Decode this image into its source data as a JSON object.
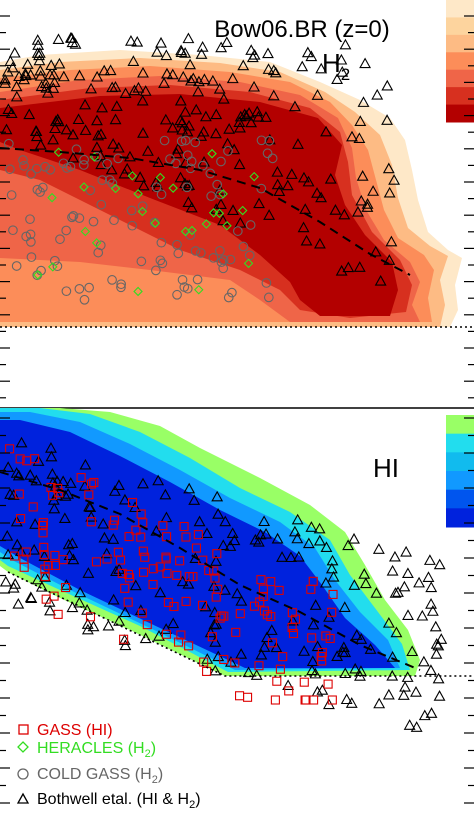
{
  "chart_data": [
    {
      "type": "heatmap",
      "panel": "H2",
      "title": "Bow06.BR (z=0)",
      "label": "H2",
      "label_main": "H",
      "label_sub": "2",
      "colorbar_colors": [
        "#fee8c8",
        "#fdd49e",
        "#fdbb84",
        "#fc8d59",
        "#ef6548",
        "#d7301f",
        "#b30000"
      ],
      "contour_levels": [
        {
          "level": 1,
          "color": "#fee8c8"
        },
        {
          "level": 2,
          "color": "#fdbb84"
        },
        {
          "level": 3,
          "color": "#fc8d59"
        },
        {
          "level": 4,
          "color": "#ef6548"
        },
        {
          "level": 5,
          "color": "#d7301f"
        },
        {
          "level": 6,
          "color": "#b30000"
        }
      ],
      "median_line": "dashed",
      "lower_limit_line": "dotted"
    },
    {
      "type": "heatmap",
      "panel": "HI",
      "label": "HI",
      "colorbar_colors": [
        "#99ff66",
        "#22ddee",
        "#11bbee",
        "#1199ff",
        "#0055ee",
        "#0022dd"
      ],
      "contour_levels": [
        {
          "level": 1,
          "color": "#99ff66"
        },
        {
          "level": 2,
          "color": "#22ddee"
        },
        {
          "level": 3,
          "color": "#1199ff"
        },
        {
          "level": 4,
          "color": "#0022dd"
        }
      ],
      "median_line": "dashed",
      "lower_limit_line": "dotted"
    }
  ],
  "legend": {
    "placement": "bottom-left",
    "items": [
      {
        "label": "GASS (HI)",
        "marker": "square",
        "color": "#dd0000"
      },
      {
        "label": "HERACLES (H",
        "sub": "2",
        "tail": ")",
        "marker": "diamond",
        "color": "#33dd22"
      },
      {
        "label": "COLD GASS (H",
        "sub": "2",
        "tail": ")",
        "marker": "circle",
        "color": "#666666"
      },
      {
        "label": "Bothwell etal. (HI & H",
        "sub": "2",
        "tail": ")",
        "marker": "triangle",
        "color": "#000000"
      }
    ]
  }
}
